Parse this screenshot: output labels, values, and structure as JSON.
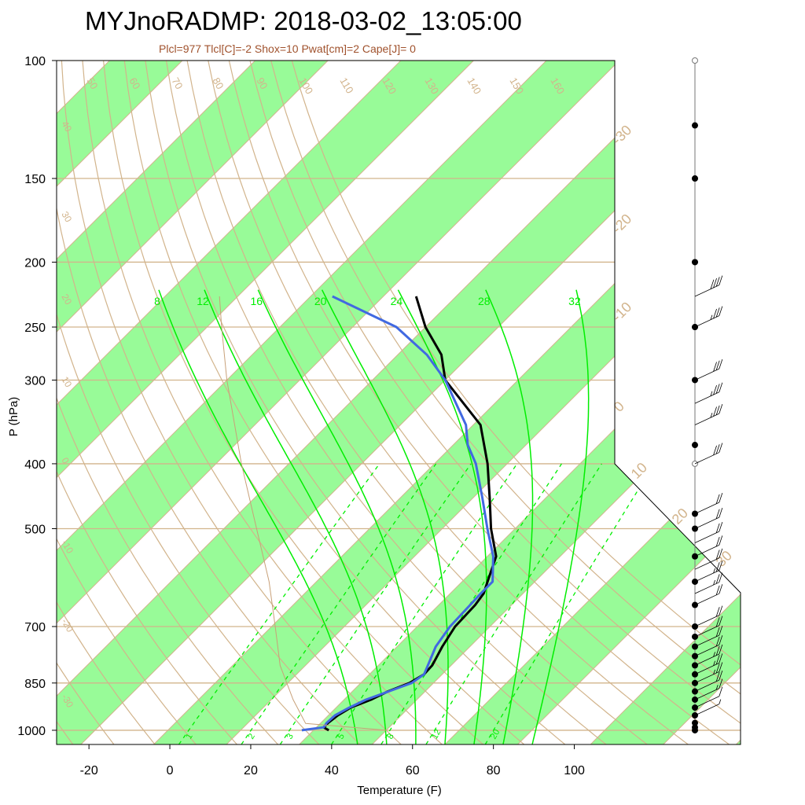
{
  "chart_data": {
    "type": "line",
    "diagram": "skew-t log-p",
    "title": "MYJnoRADMP: 2018-03-02_13:05:00",
    "subtitle": "Plcl=977 Tlcl[C]=-2 Shox=10 Pwat[cm]=2 Cape[J]= 0",
    "xlabel": "Temperature (F)",
    "ylabel": "P (hPa)",
    "x_ticks": [
      "-20",
      "0",
      "20",
      "40",
      "60",
      "80",
      "100"
    ],
    "x_tick_values": [
      -20,
      0,
      20,
      40,
      60,
      80,
      100
    ],
    "y_ticks": [
      "100",
      "150",
      "200",
      "250",
      "300",
      "400",
      "500",
      "700",
      "850",
      "1000"
    ],
    "y_tick_values": [
      100,
      150,
      200,
      250,
      300,
      400,
      500,
      700,
      850,
      1000
    ],
    "pressure_range_hpa": [
      100,
      1050
    ],
    "bottom_temperature_range_f": [
      -28,
      110
    ],
    "grid": true,
    "legend": "none",
    "isotherm_labels": [
      {
        "text": "-30",
        "t_c": -30
      },
      {
        "text": "-20",
        "t_c": -20
      },
      {
        "text": "-10",
        "t_c": -10
      },
      {
        "text": "0",
        "t_c": 0
      },
      {
        "text": "10",
        "t_c": 10
      },
      {
        "text": "20",
        "t_c": 20
      },
      {
        "text": "30",
        "t_c": 30
      }
    ],
    "dry_adiabat_labels": [
      "50",
      "60",
      "70",
      "80",
      "90",
      "100",
      "110",
      "120",
      "130",
      "140",
      "150",
      "160",
      "40",
      "30",
      "20",
      "10",
      "0",
      "-10",
      "-20",
      "-30"
    ],
    "dry_adiabat_values": [
      50,
      60,
      70,
      80,
      90,
      100,
      110,
      120,
      130,
      140,
      150,
      160
    ],
    "left_dry_adiabat_values": [
      40,
      30,
      20,
      10,
      0,
      -10,
      -20,
      -30
    ],
    "moist_adiabat_labels": [
      "8",
      "12",
      "16",
      "20",
      "24",
      "28",
      "32"
    ],
    "moist_adiabat_values": [
      8,
      12,
      16,
      20,
      24,
      28,
      32
    ],
    "mixing_ratio_labels": [
      "1",
      "2",
      "3",
      "5",
      "8",
      "12",
      "20"
    ],
    "mixing_ratio_values": [
      1,
      2,
      3,
      5,
      8,
      12,
      20
    ],
    "series": [
      {
        "kind": "temperature",
        "color": "#000000",
        "p": [
          1000,
          990,
          975,
          950,
          925,
          900,
          875,
          850,
          825,
          800,
          750,
          700,
          650,
          625,
          600,
          550,
          500,
          450,
          400,
          350,
          300,
          275,
          250,
          225
        ],
        "t_c": [
          2.1,
          1.0,
          1.0,
          1.3,
          2.0,
          3.7,
          4.9,
          6.7,
          7.5,
          7.4,
          6.2,
          5.2,
          5.0,
          4.6,
          3.5,
          1.2,
          -3.3,
          -7.7,
          -12.7,
          -19.0,
          -30.0,
          -34.0,
          -40.0,
          -45.5
        ]
      },
      {
        "kind": "dewpoint",
        "color": "#4169e1",
        "p": [
          1000,
          990,
          975,
          950,
          925,
          900,
          875,
          850,
          825,
          800,
          750,
          700,
          650,
          625,
          600,
          550,
          500,
          450,
          400,
          375,
          350,
          300,
          275,
          250,
          225
        ],
        "t_c": [
          -1.6,
          1.0,
          0.8,
          0.9,
          1.8,
          3.0,
          5.0,
          7.0,
          7.5,
          6.8,
          5.3,
          4.5,
          4.3,
          4.2,
          4.2,
          0.8,
          -3.8,
          -8.7,
          -14.3,
          -18.0,
          -21.0,
          -30.0,
          -36.0,
          -44.0,
          -57.0
        ]
      },
      {
        "kind": "parcel",
        "color": "#c8a078",
        "p": [
          1000,
          977,
          900,
          800,
          700,
          600,
          500,
          400,
          300,
          250,
          225
        ],
        "t_c": [
          10.0,
          -2.0,
          -7.0,
          -13.5,
          -19.5,
          -26.5,
          -35.5,
          -46.5,
          -60.0,
          -68.0,
          -72.5
        ]
      }
    ],
    "wind_barbs": [
      {
        "p": 1000,
        "wspd_kt": 0
      },
      {
        "p": 990,
        "wspd_kt": 0
      },
      {
        "p": 975,
        "wspd_kt": 0
      },
      {
        "p": 950,
        "wspd_kt": 5
      },
      {
        "p": 925,
        "wspd_kt": 10
      },
      {
        "p": 900,
        "wspd_kt": 15
      },
      {
        "p": 875,
        "wspd_kt": 20
      },
      {
        "p": 850,
        "wspd_kt": 25
      },
      {
        "p": 825,
        "wspd_kt": 25
      },
      {
        "p": 800,
        "wspd_kt": 25
      },
      {
        "p": 775,
        "wspd_kt": 20
      },
      {
        "p": 750,
        "wspd_kt": 20
      },
      {
        "p": 725,
        "wspd_kt": 20
      },
      {
        "p": 700,
        "wspd_kt": 20
      },
      {
        "p": 650,
        "wspd_kt": 20
      },
      {
        "p": 625,
        "wspd_kt": 25
      },
      {
        "p": 600,
        "wspd_kt": 25
      },
      {
        "p": 575,
        "wspd_kt": 20
      },
      {
        "p": 550,
        "wspd_kt": 20
      },
      {
        "p": 525,
        "wspd_kt": 20
      },
      {
        "p": 500,
        "wspd_kt": 20
      },
      {
        "p": 475,
        "wspd_kt": 20
      },
      {
        "p": 400,
        "wspd_kt": 30
      },
      {
        "p": 350,
        "wspd_kt": 35
      },
      {
        "p": 325,
        "wspd_kt": 35
      },
      {
        "p": 300,
        "wspd_kt": 30
      },
      {
        "p": 250,
        "wspd_kt": 35
      },
      {
        "p": 225,
        "wspd_kt": 40
      },
      {
        "p": 200,
        "wspd_kt": 0
      },
      {
        "p": 175,
        "wspd_kt": 0
      },
      {
        "p": 150,
        "wspd_kt": 0
      },
      {
        "p": 125,
        "wspd_kt": 0
      },
      {
        "p": 100,
        "wspd_kt": 0
      }
    ],
    "barb_dots_filled_p": [
      1000,
      990,
      975,
      950,
      925,
      900,
      875,
      850,
      825,
      800,
      775,
      750,
      725,
      700,
      650,
      600,
      550,
      500,
      475,
      375,
      300,
      250,
      200,
      150,
      125
    ],
    "barb_dots_open_p": [
      400,
      250,
      200,
      150,
      100
    ],
    "colors": {
      "isotherm_band": "#98fb98",
      "grid_tan": "#d2b48c",
      "moist_adiabat": "#00ee00",
      "label_tan": "#d2b48c",
      "subtitle": "#a0522d"
    }
  }
}
